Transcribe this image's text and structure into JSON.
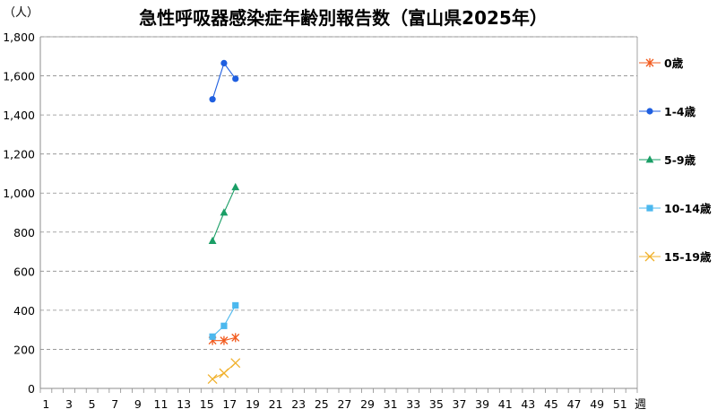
{
  "chart_data": {
    "type": "line",
    "title": "急性呼吸器感染症年齢別報告数（富山県2025年）",
    "ylabel": "（人）",
    "xlabel": "週",
    "ylim": [
      0,
      1800
    ],
    "yticks": [
      0,
      200,
      400,
      600,
      800,
      1000,
      1200,
      1400,
      1600,
      1800
    ],
    "ytick_labels": [
      "0",
      "200",
      "400",
      "600",
      "800",
      "1,000",
      "1,200",
      "1,400",
      "1,600",
      "1,800"
    ],
    "xlim": [
      1,
      53
    ],
    "xticks": [
      1,
      3,
      5,
      7,
      9,
      11,
      13,
      15,
      17,
      19,
      21,
      23,
      25,
      27,
      29,
      31,
      33,
      35,
      37,
      39,
      41,
      43,
      45,
      47,
      49,
      51
    ],
    "grid": "horizontal dashed",
    "legend": "right",
    "series": [
      {
        "name": "0歳",
        "color": "#f25a1d",
        "marker": "asterisk",
        "x": [
          16,
          17,
          18
        ],
        "values": [
          245,
          245,
          260
        ]
      },
      {
        "name": "1-4歳",
        "color": "#1f5fe0",
        "marker": "circle",
        "x": [
          16,
          17,
          18
        ],
        "values": [
          1480,
          1665,
          1585
        ]
      },
      {
        "name": "5-9歳",
        "color": "#1a9e66",
        "marker": "triangle",
        "x": [
          16,
          17,
          18
        ],
        "values": [
          755,
          900,
          1030
        ]
      },
      {
        "name": "10-14歳",
        "color": "#4cb8ee",
        "marker": "square",
        "x": [
          16,
          17,
          18
        ],
        "values": [
          265,
          320,
          425
        ]
      },
      {
        "name": "15-19歳",
        "color": "#f0b02a",
        "marker": "x",
        "x": [
          16,
          17,
          18
        ],
        "values": [
          48,
          78,
          130
        ]
      }
    ]
  }
}
